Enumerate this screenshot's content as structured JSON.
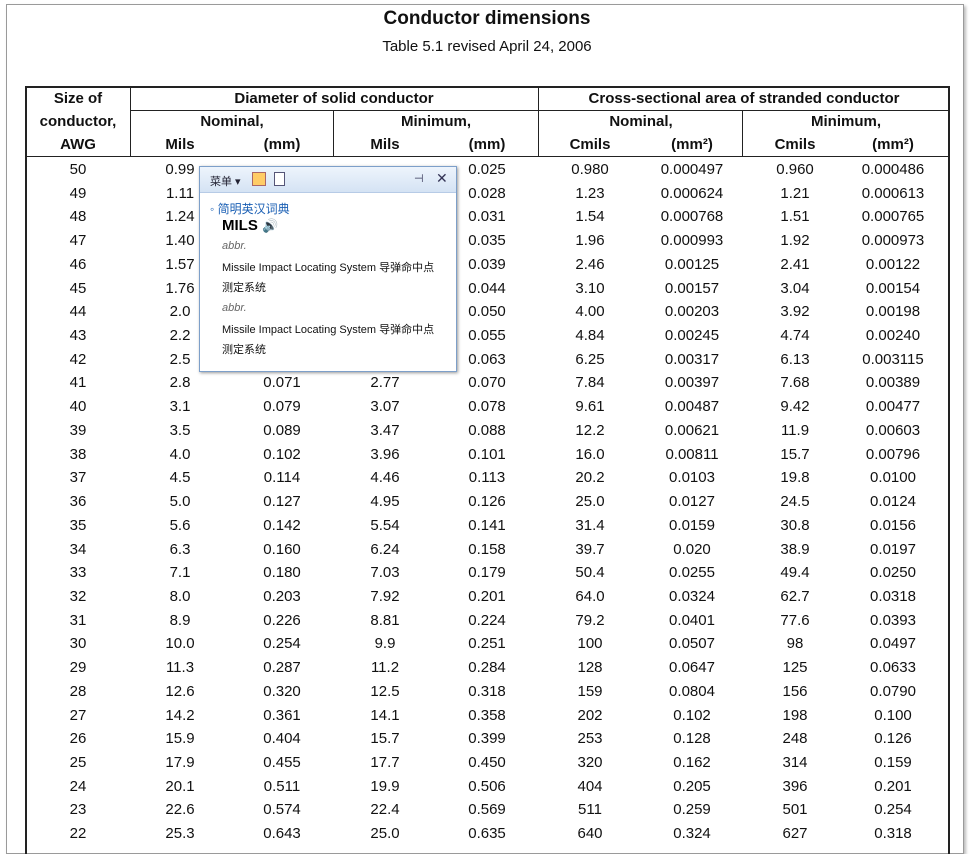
{
  "header": {
    "title": "Conductor dimensions",
    "subtitle": "Table 5.1 revised April 24, 2006"
  },
  "table": {
    "header": {
      "size": [
        "Size of",
        "conductor,",
        "AWG"
      ],
      "groups": [
        "Diameter of solid conductor",
        "Cross-sectional area of stranded conductor"
      ],
      "subgroups": [
        "Nominal,",
        "Minimum,",
        "Nominal,",
        "Minimum,"
      ],
      "units": [
        "Mils",
        "(mm)",
        "Mils",
        "(mm)",
        "Cmils",
        "(mm²)",
        "Cmils",
        "(mm²)"
      ]
    },
    "rows": [
      [
        "50",
        "0.99",
        null,
        null,
        "0.025",
        "0.980",
        "0.000497",
        "0.960",
        "0.000486"
      ],
      [
        "49",
        "1.11",
        null,
        null,
        "0.028",
        "1.23",
        "0.000624",
        "1.21",
        "0.000613"
      ],
      [
        "48",
        "1.24",
        null,
        null,
        "0.031",
        "1.54",
        "0.000768",
        "1.51",
        "0.000765"
      ],
      [
        "47",
        "1.40",
        null,
        null,
        "0.035",
        "1.96",
        "0.000993",
        "1.92",
        "0.000973"
      ],
      [
        "46",
        "1.57",
        null,
        null,
        "0.039",
        "2.46",
        "0.00125",
        "2.41",
        "0.00122"
      ],
      [
        "45",
        "1.76",
        null,
        null,
        "0.044",
        "3.10",
        "0.00157",
        "3.04",
        "0.00154"
      ],
      [
        "44",
        "2.0",
        null,
        null,
        "0.050",
        "4.00",
        "0.00203",
        "3.92",
        "0.00198"
      ],
      [
        "43",
        "2.2",
        null,
        null,
        "0.055",
        "4.84",
        "0.00245",
        "4.74",
        "0.00240"
      ],
      [
        "42",
        "2.5",
        null,
        null,
        "0.063",
        "6.25",
        "0.00317",
        "6.13",
        "0.003115"
      ],
      [
        "41",
        "2.8",
        "0.071",
        "2.77",
        "0.070",
        "7.84",
        "0.00397",
        "7.68",
        "0.00389"
      ],
      [
        "40",
        "3.1",
        "0.079",
        "3.07",
        "0.078",
        "9.61",
        "0.00487",
        "9.42",
        "0.00477"
      ],
      [
        "39",
        "3.5",
        "0.089",
        "3.47",
        "0.088",
        "12.2",
        "0.00621",
        "11.9",
        "0.00603"
      ],
      [
        "38",
        "4.0",
        "0.102",
        "3.96",
        "0.101",
        "16.0",
        "0.00811",
        "15.7",
        "0.00796"
      ],
      [
        "37",
        "4.5",
        "0.114",
        "4.46",
        "0.113",
        "20.2",
        "0.0103",
        "19.8",
        "0.0100"
      ],
      [
        "36",
        "5.0",
        "0.127",
        "4.95",
        "0.126",
        "25.0",
        "0.0127",
        "24.5",
        "0.0124"
      ],
      [
        "35",
        "5.6",
        "0.142",
        "5.54",
        "0.141",
        "31.4",
        "0.0159",
        "30.8",
        "0.0156"
      ],
      [
        "34",
        "6.3",
        "0.160",
        "6.24",
        "0.158",
        "39.7",
        "0.020",
        "38.9",
        "0.0197"
      ],
      [
        "33",
        "7.1",
        "0.180",
        "7.03",
        "0.179",
        "50.4",
        "0.0255",
        "49.4",
        "0.0250"
      ],
      [
        "32",
        "8.0",
        "0.203",
        "7.92",
        "0.201",
        "64.0",
        "0.0324",
        "62.7",
        "0.0318"
      ],
      [
        "31",
        "8.9",
        "0.226",
        "8.81",
        "0.224",
        "79.2",
        "0.0401",
        "77.6",
        "0.0393"
      ],
      [
        "30",
        "10.0",
        "0.254",
        "9.9",
        "0.251",
        "100",
        "0.0507",
        "98",
        "0.0497"
      ],
      [
        "29",
        "11.3",
        "0.287",
        "11.2",
        "0.284",
        "128",
        "0.0647",
        "125",
        "0.0633"
      ],
      [
        "28",
        "12.6",
        "0.320",
        "12.5",
        "0.318",
        "159",
        "0.0804",
        "156",
        "0.0790"
      ],
      [
        "27",
        "14.2",
        "0.361",
        "14.1",
        "0.358",
        "202",
        "0.102",
        "198",
        "0.100"
      ],
      [
        "26",
        "15.9",
        "0.404",
        "15.7",
        "0.399",
        "253",
        "0.128",
        "248",
        "0.126"
      ],
      [
        "25",
        "17.9",
        "0.455",
        "17.7",
        "0.450",
        "320",
        "0.162",
        "314",
        "0.159"
      ],
      [
        "24",
        "20.1",
        "0.511",
        "19.9",
        "0.506",
        "404",
        "0.205",
        "396",
        "0.201"
      ],
      [
        "23",
        "22.6",
        "0.574",
        "22.4",
        "0.569",
        "511",
        "0.259",
        "501",
        "0.254"
      ],
      [
        "22",
        "25.3",
        "0.643",
        "25.0",
        "0.635",
        "640",
        "0.324",
        "627",
        "0.318"
      ]
    ]
  },
  "popup": {
    "menu": "菜单",
    "dictionary": "简明英汉词典",
    "word": "MILS",
    "entries": [
      {
        "pos": "abbr.",
        "definition": "Missile Impact Locating System 导弹命中点测定系统"
      },
      {
        "pos": "abbr.",
        "definition": "Missile Impact Locating System 导弹命中点测定系统"
      }
    ]
  }
}
